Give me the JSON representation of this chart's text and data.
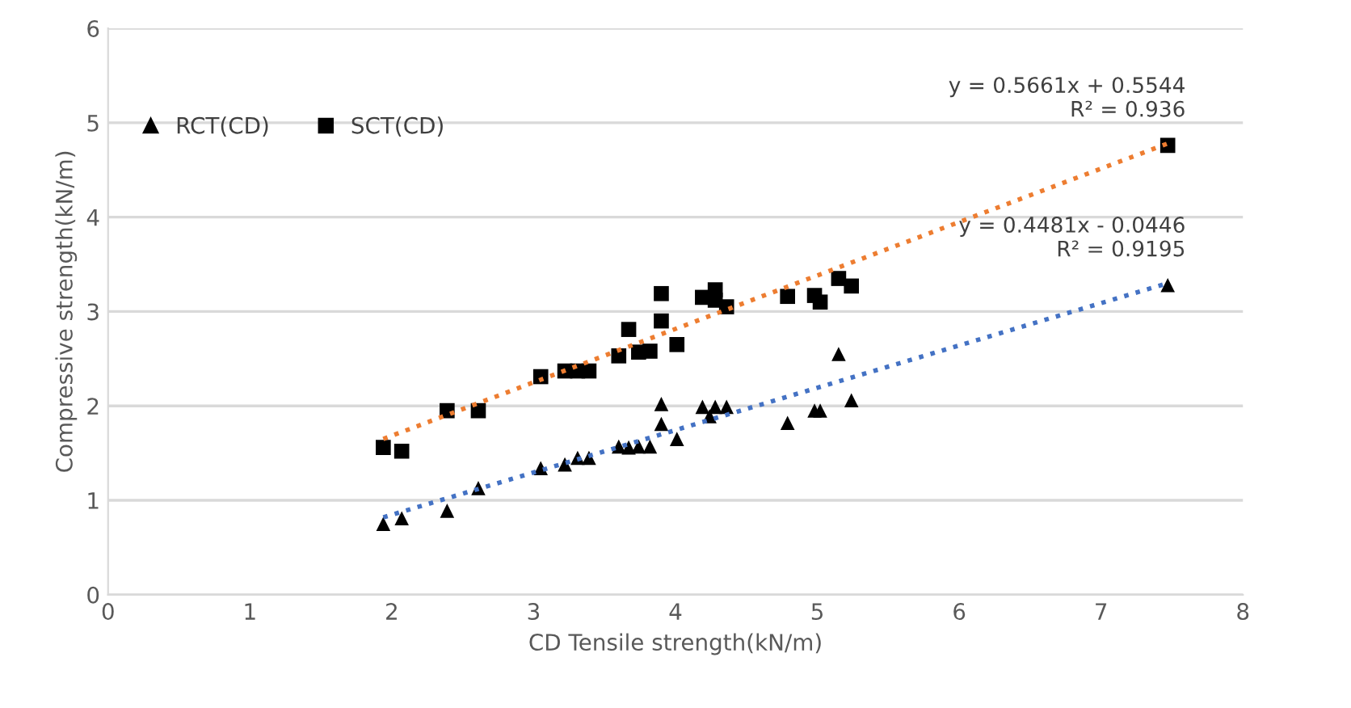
{
  "chart_data": {
    "type": "scatter",
    "xlabel": "CD Tensile strength(kN/m)",
    "ylabel": "Compressive strength(kN/m)",
    "xlim": [
      0,
      8
    ],
    "xticks": [
      0,
      1,
      2,
      3,
      4,
      5,
      6,
      7,
      8
    ],
    "ylim": [
      0,
      6
    ],
    "yticks": [
      0,
      1,
      2,
      3,
      4,
      5,
      6
    ],
    "grid": "y",
    "legend": "top left",
    "series": [
      {
        "name": "RCT(CD)",
        "color": "#000000",
        "marker": "triangle",
        "x": [
          1.94,
          2.07,
          2.39,
          2.61,
          3.05,
          3.22,
          3.31,
          3.39,
          3.6,
          3.67,
          3.74,
          3.82,
          3.9,
          3.9,
          4.01,
          4.19,
          4.24,
          4.28,
          4.36,
          4.79,
          4.98,
          5.02,
          5.15,
          5.24,
          7.47
        ],
        "values": [
          0.75,
          0.81,
          0.89,
          1.13,
          1.34,
          1.38,
          1.45,
          1.45,
          1.57,
          1.56,
          1.57,
          1.57,
          2.02,
          1.81,
          1.65,
          1.99,
          1.89,
          1.99,
          1.99,
          1.82,
          1.95,
          1.95,
          2.55,
          2.06,
          3.28
        ]
      },
      {
        "name": "SCT(CD)",
        "color": "#000000",
        "marker": "square",
        "x": [
          1.94,
          2.07,
          2.39,
          2.61,
          3.05,
          3.22,
          3.31,
          3.39,
          3.6,
          3.67,
          3.74,
          3.82,
          3.9,
          3.9,
          4.01,
          4.19,
          4.28,
          4.28,
          4.36,
          4.79,
          4.98,
          5.02,
          5.15,
          5.24,
          7.47
        ],
        "values": [
          1.56,
          1.52,
          1.95,
          1.95,
          2.31,
          2.37,
          2.37,
          2.37,
          2.53,
          2.81,
          2.57,
          2.58,
          3.19,
          2.9,
          2.65,
          3.15,
          3.23,
          3.12,
          3.05,
          3.16,
          3.17,
          3.1,
          3.35,
          3.27,
          4.76
        ]
      },
      {
        "type": "line",
        "color": "#4472c4",
        "line_style": "dotted",
        "marker": "none",
        "x": [
          1.94,
          7.47
        ],
        "values": [
          0.82,
          3.3
        ]
      },
      {
        "type": "line",
        "color": "#ed7d31",
        "line_style": "dotted",
        "marker": "none",
        "x": [
          1.94,
          7.47
        ],
        "values": [
          1.65,
          4.78
        ]
      }
    ],
    "annotations": [
      {
        "text": "y = 0.5661x + 0.5544\nR² = 0.936",
        "x": 7.47,
        "y": 4.78
      },
      {
        "text": "y = 0.4481x - 0.0446\nR² = 0.9195",
        "x": 7.47,
        "y": 3.3
      }
    ]
  }
}
